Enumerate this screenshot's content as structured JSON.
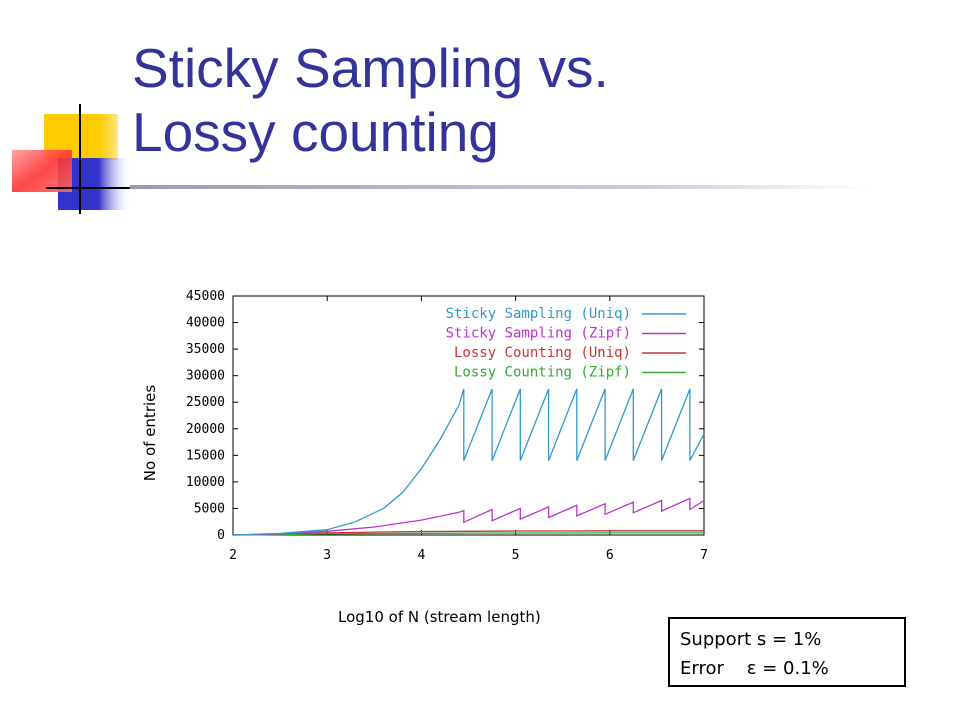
{
  "slide": {
    "title_line1": "Sticky Sampling vs.",
    "title_line2": "Lossy counting",
    "params_line1": "Support s = 1%",
    "params_line2": "Error    ε = 0.1%"
  },
  "chart_data": {
    "type": "line",
    "xlabel": "Log10 of N (stream length)",
    "ylabel": "No of entries",
    "xlim": [
      2,
      7
    ],
    "ylim": [
      0,
      45000
    ],
    "xticks": [
      "2",
      "3",
      "4",
      "5",
      "6",
      "7"
    ],
    "yticks": [
      "0",
      "5000",
      "10000",
      "15000",
      "20000",
      "25000",
      "30000",
      "35000",
      "40000",
      "45000"
    ],
    "legend_placement": "top-right",
    "grid": false,
    "series": [
      {
        "name": "Sticky Sampling (Uniq)",
        "color": "#3399cc",
        "x": [
          2.0,
          2.5,
          3.0,
          3.3,
          3.6,
          3.8,
          4.0,
          4.2,
          4.4,
          4.45,
          4.45,
          4.75,
          4.75,
          5.05,
          5.05,
          5.35,
          5.35,
          5.65,
          5.65,
          5.95,
          5.95,
          6.25,
          6.25,
          6.55,
          6.55,
          6.85,
          6.85,
          7.0
        ],
        "y": [
          0,
          300,
          1000,
          2500,
          5000,
          8000,
          12500,
          18000,
          24500,
          27500,
          14000,
          27500,
          14000,
          27500,
          14000,
          27500,
          14000,
          27500,
          14000,
          27500,
          14000,
          27500,
          14000,
          27500,
          14000,
          27500,
          14000,
          19000
        ]
      },
      {
        "name": "Sticky Sampling (Zipf)",
        "color": "#bb33cc",
        "x": [
          2.0,
          2.5,
          3.0,
          3.5,
          4.0,
          4.4,
          4.45,
          4.45,
          4.75,
          4.75,
          5.05,
          5.05,
          5.35,
          5.35,
          5.65,
          5.65,
          5.95,
          5.95,
          6.25,
          6.25,
          6.55,
          6.55,
          6.85,
          6.85,
          7.0
        ],
        "y": [
          0,
          200,
          700,
          1500,
          2800,
          4300,
          4600,
          2400,
          4800,
          2700,
          5000,
          3000,
          5300,
          3300,
          5600,
          3600,
          5900,
          3900,
          6200,
          4200,
          6500,
          4500,
          6900,
          4800,
          6500
        ]
      },
      {
        "name": "Lossy Counting (Uniq)",
        "color": "#cc3333",
        "x": [
          2.0,
          2.5,
          3.0,
          3.5,
          4.0,
          4.5,
          5.0,
          5.5,
          6.0,
          6.5,
          7.0
        ],
        "y": [
          0,
          150,
          400,
          550,
          650,
          700,
          750,
          750,
          800,
          800,
          800
        ]
      },
      {
        "name": "Lossy Counting (Zipf)",
        "color": "#33aa33",
        "x": [
          2.0,
          2.5,
          3.0,
          3.5,
          4.0,
          4.5,
          5.0,
          5.5,
          6.0,
          6.5,
          7.0
        ],
        "y": [
          0,
          80,
          200,
          280,
          320,
          350,
          370,
          380,
          390,
          390,
          400
        ]
      }
    ]
  },
  "colors": {
    "title": "#333399",
    "deco_yellow": "#ffcc00",
    "deco_red": "#ff3333",
    "deco_blue": "#3333cc"
  }
}
